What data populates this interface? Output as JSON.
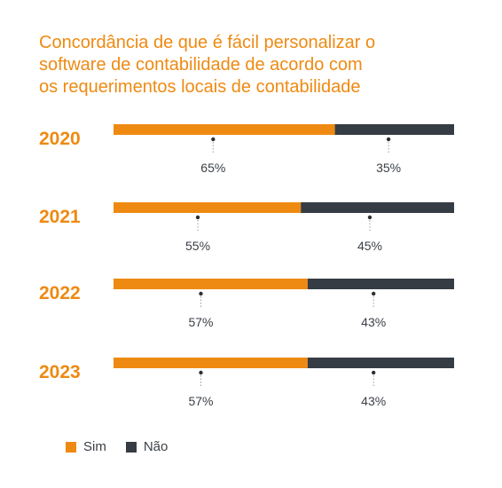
{
  "title_lines": [
    "Concordância de que é fácil personalizar o",
    "software de contabilidade de acordo com",
    "os requerimentos locais de contabilidade"
  ],
  "colors": {
    "sim": "#ee8a12",
    "nao": "#353c44",
    "year_text": "#ee8a12",
    "value_text": "#3a3f46"
  },
  "legend": [
    {
      "label": "Sim",
      "color": "#ee8a12"
    },
    {
      "label": "Não",
      "color": "#353c44"
    }
  ],
  "chart_data": {
    "type": "bar",
    "orientation": "horizontal",
    "stacked": true,
    "percent": true,
    "title": "Concordância de que é fácil personalizar o software de contabilidade de acordo com os requerimentos locais de contabilidade",
    "categories": [
      "2020",
      "2021",
      "2022",
      "2023"
    ],
    "series": [
      {
        "name": "Sim",
        "values": [
          65,
          55,
          57,
          57
        ],
        "labels": [
          "65%",
          "55%",
          "57%",
          "57%"
        ]
      },
      {
        "name": "Não",
        "values": [
          35,
          45,
          43,
          43
        ],
        "labels": [
          "35%",
          "45%",
          "43%",
          "43%"
        ]
      }
    ],
    "xlim": [
      0,
      100
    ],
    "grid": false,
    "legend_position": "bottom-left"
  }
}
